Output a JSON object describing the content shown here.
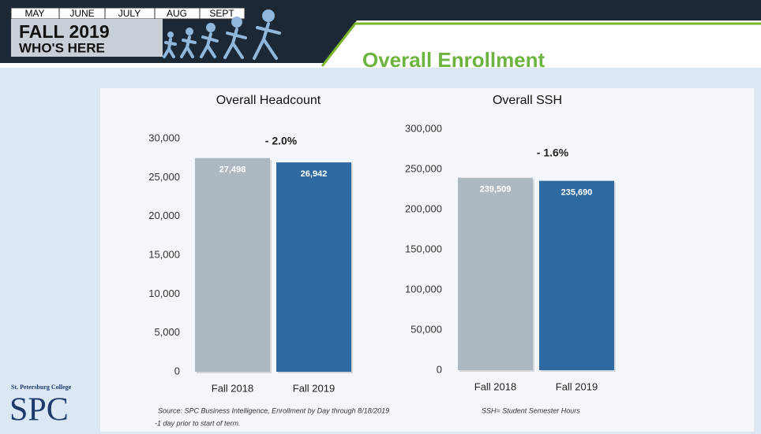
{
  "header": {
    "months": [
      "MAY",
      "JUNE",
      "JULY",
      "AUG",
      "SEPT"
    ],
    "term": "FALL 2019",
    "subtitle": "WHO'S HERE",
    "title": "Overall Enrollment"
  },
  "chart_data": [
    {
      "type": "bar",
      "title": "Overall Headcount",
      "categories": [
        "Fall 2018",
        "Fall 2019"
      ],
      "values": [
        27498,
        26942
      ],
      "value_labels": [
        "27,498",
        "26,942"
      ],
      "colors": [
        "#adb9c2",
        "#2e6aa1"
      ],
      "annotation": "- 2.0%",
      "ylim": [
        0,
        30000
      ],
      "yticks": [
        0,
        {
          "value": 5000,
          "label": "5,000"
        },
        {
          "value": 10000,
          "label": "10,000"
        },
        {
          "value": 15000,
          "label": "15,000"
        },
        {
          "value": 20000,
          "label": "20,000"
        },
        {
          "value": 25000,
          "label": "25,000"
        },
        {
          "value": 30000,
          "label": "30,000"
        }
      ],
      "grid": false
    },
    {
      "type": "bar",
      "title": "Overall SSH",
      "categories": [
        "Fall 2018",
        "Fall 2019"
      ],
      "values": [
        239509,
        235690
      ],
      "value_labels": [
        "239,509",
        "235,690"
      ],
      "colors": [
        "#adb9c2",
        "#2e6aa1"
      ],
      "annotation": "- 1.6%",
      "ylim": [
        0,
        300000
      ],
      "yticks": [
        0,
        {
          "value": 50000,
          "label": "50,000"
        },
        {
          "value": 100000,
          "label": "100,000"
        },
        {
          "value": 150000,
          "label": "150,000"
        },
        {
          "value": 200000,
          "label": "200,000"
        },
        {
          "value": 250000,
          "label": "250,000"
        },
        {
          "value": 300000,
          "label": "300,000"
        }
      ],
      "grid": false
    }
  ],
  "footer": {
    "college": "St. Petersburg College",
    "logo": "SPC",
    "source": "Source: SPC Business Intelligence, Enrollment by Day through 8/18/2019",
    "note": "-1 day prior to start of term.",
    "definition": "SSH= Student Semester Hours"
  }
}
